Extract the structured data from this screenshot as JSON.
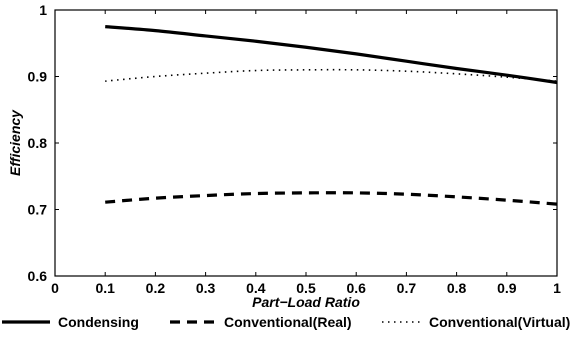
{
  "chart_data": {
    "type": "line",
    "xlabel": "Part−Load Ratio",
    "ylabel": "Efficiency",
    "xlim": [
      0,
      1
    ],
    "ylim": [
      0.6,
      1
    ],
    "xticks": [
      0,
      0.1,
      0.2,
      0.3,
      0.4,
      0.5,
      0.6,
      0.7,
      0.8,
      0.9,
      1
    ],
    "xtick_labels": [
      "0",
      "0.1",
      "0.2",
      "0.3",
      "0.4",
      "0.5",
      "0.6",
      "0.7",
      "0.8",
      "0.9",
      "1"
    ],
    "yticks": [
      0.6,
      0.7,
      0.8,
      0.9,
      1
    ],
    "ytick_labels": [
      "0.6",
      "0.7",
      "0.8",
      "0.9",
      "1"
    ],
    "grid": false,
    "legend_position": "bottom",
    "x": [
      0.1,
      0.2,
      0.3,
      0.4,
      0.5,
      0.6,
      0.7,
      0.8,
      0.9,
      1.0
    ],
    "series": [
      {
        "name": "Condensing",
        "style": "solid",
        "color": "#000000",
        "values": [
          0.975,
          0.969,
          0.961,
          0.953,
          0.944,
          0.934,
          0.923,
          0.912,
          0.902,
          0.891
        ]
      },
      {
        "name": "Conventional(Real)",
        "style": "dashed",
        "color": "#000000",
        "values": [
          0.711,
          0.717,
          0.721,
          0.724,
          0.725,
          0.725,
          0.723,
          0.719,
          0.714,
          0.708
        ]
      },
      {
        "name": "Conventional(Virtual)",
        "style": "dotted",
        "color": "#000000",
        "values": [
          0.893,
          0.9,
          0.905,
          0.909,
          0.91,
          0.91,
          0.908,
          0.904,
          0.899,
          0.893
        ]
      }
    ]
  }
}
